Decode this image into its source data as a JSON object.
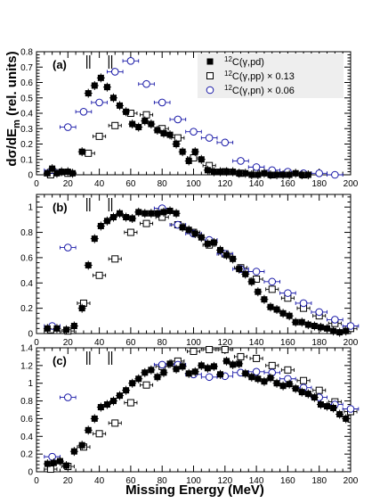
{
  "figure": {
    "xlabel": "Missing  Energy (MeV)",
    "ylabel": "dσ/dE",
    "ylabel_sub": "m",
    "ylabel_suffix": " (rel. units)"
  },
  "legend": {
    "entries": [
      {
        "sup": "12",
        "text": "C(γ,pd)",
        "marker": "filled-square",
        "color": "#000000"
      },
      {
        "sup": "12",
        "text": "C(γ,pp) × 0.13",
        "marker": "open-square",
        "color": "#000000"
      },
      {
        "sup": "12",
        "text": "C(γ,pn) × 0.06",
        "marker": "open-circle",
        "color": "#1a1aa8"
      }
    ]
  },
  "colors": {
    "pd": "#000000",
    "pp": "#000000",
    "pn": "#1a1aa8"
  },
  "chart_data": [
    {
      "type": "scatter",
      "panel_label": "(a)",
      "xlim": [
        0,
        200
      ],
      "ylim": [
        0,
        0.8
      ],
      "xticks": [
        "0",
        "20",
        "40",
        "60",
        "80",
        "100",
        "120",
        "140",
        "160",
        "180",
        "200"
      ],
      "yticks": [
        "0",
        "0.1",
        "0.2",
        "0.3",
        "0.4",
        "0.5",
        "0.6",
        "0.7",
        "0.8"
      ],
      "markers_at_x": [
        33,
        47
      ],
      "series": [
        {
          "name": "12C(γ,pd)",
          "key": "pd",
          "x": [
            7,
            10,
            13,
            16,
            20,
            23,
            29,
            33,
            37,
            41,
            45,
            49,
            53,
            57,
            61,
            65,
            69,
            73,
            77,
            81,
            85,
            89,
            93,
            97,
            101,
            105,
            109,
            113,
            117,
            121,
            125,
            129,
            133,
            137,
            141,
            145,
            149,
            153,
            157,
            161,
            165,
            169,
            173
          ],
          "y": [
            0.01,
            0.04,
            0.01,
            0.02,
            0.02,
            0.01,
            0.15,
            0.53,
            0.58,
            0.63,
            0.57,
            0.5,
            0.45,
            0.41,
            0.33,
            0.31,
            0.35,
            0.33,
            0.29,
            0.27,
            0.26,
            0.2,
            0.15,
            0.09,
            0.15,
            0.1,
            0.03,
            0.02,
            0.02,
            0.02,
            0.02,
            0.01,
            0.01,
            0.0,
            0.0,
            0.01,
            0.0,
            0.0,
            0.0,
            0.0,
            0.01,
            0.0,
            0.0
          ]
        },
        {
          "name": "12C(γ,pp) × 0.13",
          "key": "pp",
          "x": [
            9,
            20,
            33,
            40,
            50,
            60,
            70,
            80,
            90,
            100,
            110,
            120,
            130,
            140,
            150,
            160,
            170
          ],
          "y": [
            0.0,
            0.01,
            0.14,
            0.25,
            0.32,
            0.4,
            0.39,
            0.3,
            0.24,
            0.11,
            0.06,
            0.02,
            0.01,
            0.01,
            0.0,
            0.01,
            0.0
          ],
          "xerr": [
            4,
            4,
            4,
            4,
            4,
            4,
            4,
            4,
            4,
            4,
            4,
            4,
            4,
            4,
            4,
            4,
            4
          ]
        },
        {
          "name": "12C(γ,pn) × 0.06",
          "key": "pn",
          "x": [
            10,
            20,
            30,
            40,
            50,
            60,
            70,
            80,
            90,
            100,
            110,
            120,
            130,
            140,
            150,
            160,
            170,
            180,
            190
          ],
          "y": [
            0.03,
            0.31,
            0.41,
            0.47,
            0.67,
            0.74,
            0.59,
            0.47,
            0.36,
            0.28,
            0.24,
            0.21,
            0.09,
            0.05,
            0.03,
            0.02,
            0.01,
            0.01,
            0.0
          ],
          "xerr": [
            5,
            5,
            5,
            5,
            5,
            5,
            5,
            5,
            5,
            5,
            5,
            5,
            5,
            5,
            5,
            5,
            5,
            5,
            5
          ]
        }
      ]
    },
    {
      "type": "scatter",
      "panel_label": "(b)",
      "xlim": [
        0,
        200
      ],
      "ylim": [
        0,
        1.1
      ],
      "xticks": [
        "0",
        "20",
        "40",
        "60",
        "80",
        "100",
        "120",
        "140",
        "160",
        "180",
        "200"
      ],
      "yticks": [
        "0",
        "0.2",
        "0.4",
        "0.6",
        "0.8",
        "1"
      ],
      "markers_at_x": [
        33,
        47
      ],
      "series": [
        {
          "name": "12C(γ,pd)",
          "key": "pd",
          "x": [
            7,
            13,
            19,
            24,
            29,
            33,
            37,
            41,
            45,
            49,
            53,
            57,
            61,
            65,
            69,
            73,
            77,
            81,
            85,
            89,
            93,
            97,
            101,
            105,
            109,
            113,
            117,
            121,
            125,
            129,
            133,
            137,
            141,
            145,
            149,
            153,
            157,
            161,
            165,
            169,
            173,
            177,
            181,
            185,
            189,
            193,
            197
          ],
          "y": [
            0.04,
            0.04,
            0.03,
            0.06,
            0.2,
            0.54,
            0.75,
            0.85,
            0.89,
            0.92,
            0.95,
            0.92,
            0.91,
            0.96,
            0.95,
            0.95,
            0.95,
            0.96,
            0.97,
            0.95,
            0.84,
            0.82,
            0.79,
            0.76,
            0.71,
            0.72,
            0.66,
            0.62,
            0.59,
            0.51,
            0.47,
            0.41,
            0.33,
            0.27,
            0.21,
            0.19,
            0.16,
            0.14,
            0.09,
            0.09,
            0.07,
            0.06,
            0.05,
            0.04,
            0.02,
            0.01,
            0.02
          ]
        },
        {
          "name": "12C(γ,pp) × 0.13",
          "key": "pp",
          "x": [
            9,
            20,
            30,
            40,
            50,
            60,
            70,
            80,
            90,
            100,
            110,
            120,
            130,
            140,
            150,
            160,
            170,
            180,
            190,
            200
          ],
          "y": [
            0.03,
            0.02,
            0.24,
            0.46,
            0.59,
            0.8,
            0.87,
            0.92,
            0.86,
            0.8,
            0.7,
            0.63,
            0.52,
            0.43,
            0.35,
            0.28,
            0.2,
            0.14,
            0.08,
            0.04
          ],
          "xerr": [
            4,
            4,
            4,
            4,
            4,
            4,
            4,
            4,
            4,
            4,
            4,
            4,
            4,
            4,
            4,
            4,
            4,
            4,
            4,
            4
          ]
        },
        {
          "name": "12C(γ,pn) × 0.06",
          "key": "pn",
          "x": [
            10,
            20,
            80,
            90,
            100,
            110,
            120,
            130,
            140,
            150,
            160,
            170,
            180,
            190,
            200
          ],
          "y": [
            0.06,
            0.68,
            0.99,
            0.86,
            0.79,
            0.74,
            0.63,
            0.51,
            0.49,
            0.41,
            0.32,
            0.24,
            0.17,
            0.11,
            0.06
          ],
          "xerr": [
            5,
            5,
            5,
            5,
            5,
            5,
            5,
            5,
            5,
            5,
            5,
            5,
            5,
            5,
            5
          ]
        }
      ]
    },
    {
      "type": "scatter",
      "panel_label": "(c)",
      "xlim": [
        0,
        200
      ],
      "ylim": [
        0,
        1.4
      ],
      "xticks": [
        "0",
        "20",
        "40",
        "60",
        "80",
        "100",
        "120",
        "140",
        "160",
        "180",
        "200"
      ],
      "yticks": [
        "0",
        "0.2",
        "0.4",
        "0.6",
        "0.8",
        "1",
        "1.2",
        "1.4"
      ],
      "markers_at_x": [
        33,
        47
      ],
      "series": [
        {
          "name": "12C(γ,pd)",
          "key": "pd",
          "x": [
            7,
            11,
            15,
            19,
            24,
            29,
            33,
            37,
            41,
            45,
            49,
            53,
            57,
            61,
            65,
            69,
            73,
            77,
            81,
            85,
            89,
            93,
            97,
            101,
            105,
            109,
            113,
            117,
            121,
            125,
            129,
            133,
            137,
            141,
            145,
            149,
            153,
            157,
            161,
            165,
            169,
            173,
            177,
            181,
            185,
            189,
            193,
            197
          ],
          "y": [
            0.09,
            0.1,
            0.12,
            0.07,
            0.23,
            0.3,
            0.47,
            0.6,
            0.73,
            0.76,
            0.8,
            0.86,
            0.92,
            1.0,
            1.05,
            1.12,
            1.15,
            1.07,
            1.12,
            1.22,
            1.16,
            1.19,
            1.11,
            1.13,
            1.2,
            1.17,
            1.19,
            1.1,
            1.25,
            1.21,
            1.22,
            1.11,
            1.07,
            1.05,
            1.02,
            1.06,
            1.0,
            0.97,
            0.99,
            0.94,
            0.9,
            0.88,
            0.84,
            0.76,
            0.74,
            0.72,
            0.65,
            0.6
          ]
        },
        {
          "name": "12C(γ,pp) × 0.13",
          "key": "pp",
          "x": [
            9,
            20,
            30,
            40,
            50,
            60,
            70,
            80,
            90,
            100,
            110,
            120,
            130,
            140,
            150,
            160,
            170,
            180,
            190,
            200
          ],
          "y": [
            0.03,
            0.06,
            0.28,
            0.43,
            0.55,
            0.78,
            0.98,
            1.19,
            1.25,
            1.36,
            1.38,
            1.38,
            1.3,
            1.28,
            1.2,
            1.15,
            1.03,
            0.92,
            0.79,
            0.68
          ],
          "xerr": [
            4,
            4,
            4,
            4,
            4,
            4,
            4,
            4,
            4,
            4,
            4,
            4,
            4,
            4,
            4,
            4,
            4,
            4,
            4,
            4
          ]
        },
        {
          "name": "12C(γ,pn) × 0.06",
          "key": "pn",
          "x": [
            10,
            20,
            80,
            90,
            100,
            110,
            120,
            130,
            140,
            150,
            160,
            170,
            180,
            190,
            200
          ],
          "y": [
            0.17,
            0.84,
            1.21,
            1.21,
            1.1,
            1.07,
            1.08,
            1.12,
            1.13,
            1.12,
            1.05,
            0.95,
            0.84,
            0.76,
            0.71
          ],
          "xerr": [
            5,
            5,
            5,
            5,
            5,
            5,
            5,
            5,
            5,
            5,
            5,
            5,
            5,
            5,
            5
          ]
        }
      ]
    }
  ]
}
